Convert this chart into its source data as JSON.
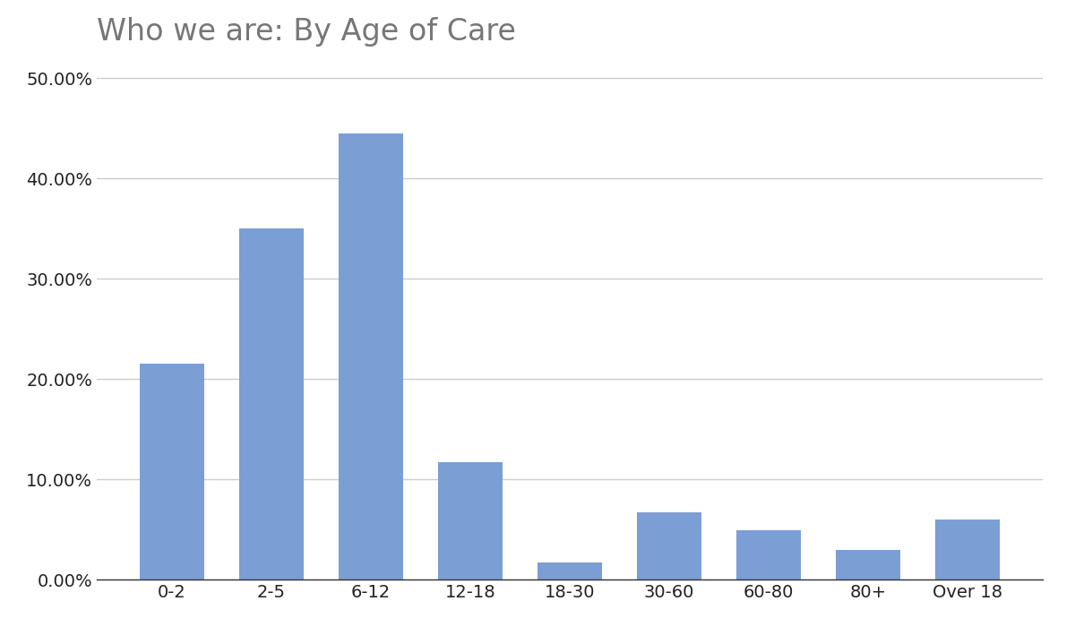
{
  "title": "Who we are: By Age of Care",
  "categories": [
    "0-2",
    "2-5",
    "6-12",
    "12-18",
    "18-30",
    "30-60",
    "60-80",
    "80+",
    "Over 18"
  ],
  "values": [
    0.215,
    0.35,
    0.445,
    0.117,
    0.017,
    0.067,
    0.049,
    0.03,
    0.06
  ],
  "bar_color": "#7b9fd4",
  "background_color": "#ffffff",
  "ylim": [
    0,
    0.52
  ],
  "yticks": [
    0.0,
    0.1,
    0.2,
    0.3,
    0.4,
    0.5
  ],
  "title_fontsize": 24,
  "tick_fontsize": 14,
  "grid_color": "#cccccc",
  "title_color": "#777777",
  "label_color": "#222222"
}
